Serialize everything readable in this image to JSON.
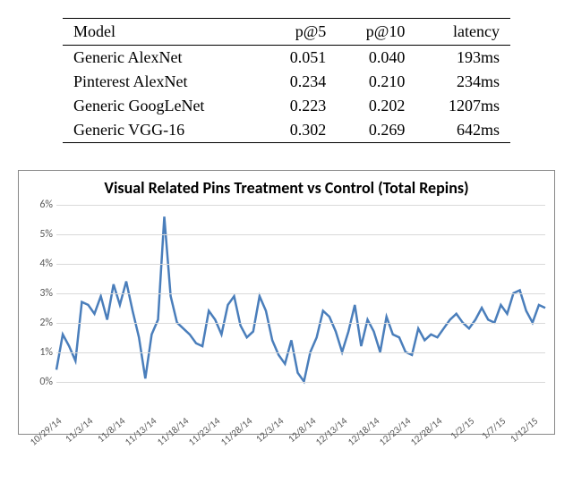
{
  "table": {
    "columns": [
      "Model",
      "p@5",
      "p@10",
      "latency"
    ],
    "rows": [
      [
        "Generic AlexNet",
        "0.051",
        "0.040",
        "193ms"
      ],
      [
        "Pinterest AlexNet",
        "0.234",
        "0.210",
        "234ms"
      ],
      [
        "Generic GoogLeNet",
        "0.223",
        "0.202",
        "1207ms"
      ],
      [
        "Generic VGG-16",
        "0.302",
        "0.269",
        "642ms"
      ]
    ],
    "header_fontsize": 18,
    "cell_fontsize": 18,
    "border_color": "#000000"
  },
  "chart": {
    "type": "line",
    "title": "Visual Related Pins Treatment vs Control (Total Repins)",
    "title_fontsize": 18,
    "title_fontweight": "bold",
    "background_color": "#ffffff",
    "border_color": "#888888",
    "grid_color": "#d9d9d9",
    "axis_font_color": "#595959",
    "axis_fontsize": 12,
    "line_color": "#4a7ebb",
    "line_width": 2.5,
    "ylim": [
      -0.5,
      6
    ],
    "ytick_step": 1,
    "yticks": [
      {
        "v": 0,
        "label": "0%"
      },
      {
        "v": 1,
        "label": "1%"
      },
      {
        "v": 2,
        "label": "2%"
      },
      {
        "v": 3,
        "label": "3%"
      },
      {
        "v": 4,
        "label": "4%"
      },
      {
        "v": 5,
        "label": "5%"
      },
      {
        "v": 6,
        "label": "6%"
      }
    ],
    "x_labels": [
      "10/29/14",
      "11/3/14",
      "11/8/14",
      "11/13/14",
      "11/18/14",
      "11/23/14",
      "11/28/14",
      "12/3/14",
      "12/8/14",
      "12/13/14",
      "12/18/14",
      "12/23/14",
      "12/28/14",
      "1/2/15",
      "1/7/15",
      "1/12/15"
    ],
    "x_label_every": 5,
    "values": [
      0.4,
      1.6,
      1.2,
      0.7,
      2.7,
      2.6,
      2.3,
      2.9,
      2.1,
      3.3,
      2.6,
      3.4,
      2.4,
      1.5,
      0.1,
      1.6,
      2.1,
      5.6,
      2.9,
      2.0,
      1.8,
      1.6,
      1.3,
      1.2,
      2.4,
      2.1,
      1.6,
      2.6,
      2.9,
      1.9,
      1.5,
      1.7,
      2.9,
      2.4,
      1.4,
      0.9,
      0.6,
      1.4,
      0.3,
      0.0,
      1.0,
      1.5,
      2.4,
      2.2,
      1.7,
      1.0,
      1.7,
      2.6,
      1.2,
      2.1,
      1.7,
      1.0,
      2.2,
      1.6,
      1.5,
      1.0,
      0.9,
      1.8,
      1.4,
      1.6,
      1.5,
      1.8,
      2.1,
      2.3,
      2.0,
      1.8,
      2.1,
      2.5,
      2.1,
      2.0,
      2.6,
      2.3,
      3.0,
      3.1,
      2.4,
      2.0,
      2.6,
      2.5
    ]
  }
}
